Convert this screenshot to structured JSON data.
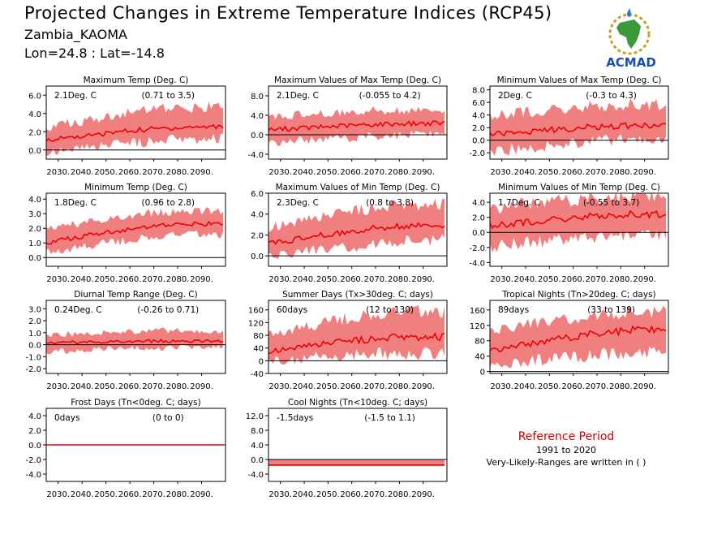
{
  "header": {
    "title": "Projected Changes in Extreme Temperature Indices (RCP45)",
    "location": "Zambia_KAOMA",
    "coords": "Lon=24.8 : Lat=-14.8"
  },
  "logo": {
    "text": "ACMAD",
    "icon": "africa-map-logo"
  },
  "reference": {
    "title": "Reference Period",
    "years": "1991 to 2020",
    "note": "Very-Likely-Ranges are written in ( )"
  },
  "colors": {
    "band": "#f08080",
    "line": "#ee0000",
    "zero": "#000000",
    "ref_title": "#cc0000"
  },
  "chart_data": [
    {
      "type": "area",
      "title": "Maximum Temp (Deg. C)",
      "value": "2.1Deg. C",
      "range": "(0.71 to 3.5)",
      "x_ticks": [
        "2030.",
        "2040.",
        "2050.",
        "2060.",
        "2070.",
        "2080.",
        "2090."
      ],
      "y_ticks": [
        "0.0",
        "2.0",
        "4.0",
        "6.0"
      ],
      "ylim": [
        -1.0,
        7.0
      ],
      "xlim": [
        2025,
        2100
      ],
      "x": [
        2025,
        2035,
        2045,
        2055,
        2065,
        2075,
        2085,
        2099
      ],
      "median": [
        1.1,
        1.4,
        1.6,
        2.0,
        2.2,
        2.4,
        2.5,
        2.6
      ],
      "low": [
        -0.2,
        0.1,
        0.3,
        0.6,
        0.8,
        1.1,
        1.2,
        1.3
      ],
      "high": [
        2.4,
        3.0,
        3.3,
        3.8,
        4.2,
        4.5,
        4.6,
        4.8
      ]
    },
    {
      "type": "area",
      "title": "Maximum Values of Max Temp (Deg. C)",
      "value": "2.1Deg. C",
      "range": "(-0.055 to 4.2)",
      "x_ticks": [
        "2030.",
        "2040.",
        "2050.",
        "2060.",
        "2070.",
        "2080.",
        "2090."
      ],
      "y_ticks": [
        "-4.0",
        "0.0",
        "4.0",
        "8.0"
      ],
      "ylim": [
        -5.0,
        10.0
      ],
      "xlim": [
        2025,
        2100
      ],
      "x": [
        2025,
        2035,
        2045,
        2055,
        2065,
        2075,
        2085,
        2099
      ],
      "median": [
        1.0,
        1.3,
        1.5,
        1.8,
        2.0,
        2.2,
        2.3,
        2.4
      ],
      "low": [
        -1.6,
        -1.4,
        -1.0,
        -0.8,
        -0.4,
        -0.2,
        0.0,
        0.2
      ],
      "high": [
        3.5,
        4.0,
        4.2,
        4.6,
        4.9,
        5.0,
        5.1,
        5.0
      ]
    },
    {
      "type": "area",
      "title": "Minimum Values of Max Temp (Deg. C)",
      "value": "2Deg. C",
      "range": "(-0.3 to 4.3)",
      "x_ticks": [
        "2030.",
        "2040.",
        "2050.",
        "2060.",
        "2070.",
        "2080.",
        "2090."
      ],
      "y_ticks": [
        "-2.0",
        "0.0",
        "2.0",
        "4.0",
        "6.0",
        "8.0"
      ],
      "ylim": [
        -3.0,
        8.6
      ],
      "xlim": [
        2025,
        2100
      ],
      "x": [
        2025,
        2035,
        2045,
        2055,
        2065,
        2075,
        2085,
        2099
      ],
      "median": [
        1.0,
        1.2,
        1.5,
        1.8,
        2.0,
        2.2,
        2.3,
        2.3
      ],
      "low": [
        -1.8,
        -1.4,
        -1.0,
        -0.6,
        -0.3,
        0.0,
        0.1,
        0.2
      ],
      "high": [
        3.6,
        4.2,
        4.6,
        5.0,
        5.3,
        5.5,
        5.7,
        5.6
      ]
    },
    {
      "type": "area",
      "title": "Minimum Temp (Deg. C)",
      "value": "1.8Deg. C",
      "range": "(0.96 to 2.8)",
      "x_ticks": [
        "2030.",
        "2040.",
        "2050.",
        "2060.",
        "2070.",
        "2080.",
        "2090."
      ],
      "y_ticks": [
        "0.0",
        "1.0",
        "2.0",
        "3.0",
        "4.0"
      ],
      "ylim": [
        -0.6,
        4.4
      ],
      "xlim": [
        2025,
        2100
      ],
      "x": [
        2025,
        2035,
        2045,
        2055,
        2065,
        2075,
        2085,
        2099
      ],
      "median": [
        1.0,
        1.3,
        1.6,
        1.8,
        2.0,
        2.2,
        2.3,
        2.3
      ],
      "low": [
        0.3,
        0.6,
        0.9,
        1.1,
        1.3,
        1.5,
        1.6,
        1.6
      ],
      "high": [
        1.9,
        2.2,
        2.5,
        2.8,
        3.0,
        3.1,
        3.2,
        3.2
      ]
    },
    {
      "type": "area",
      "title": "Maximum Values of Min Temp (Deg. C)",
      "value": "2.3Deg. C",
      "range": "(0.8 to 3.8)",
      "x_ticks": [
        "2030.",
        "2040.",
        "2050.",
        "2060.",
        "2070.",
        "2080.",
        "2090."
      ],
      "y_ticks": [
        "0.0",
        "2.0",
        "4.0",
        "6.0"
      ],
      "ylim": [
        -1.0,
        6.0
      ],
      "xlim": [
        2025,
        2100
      ],
      "x": [
        2025,
        2035,
        2045,
        2055,
        2065,
        2075,
        2085,
        2099
      ],
      "median": [
        1.2,
        1.5,
        1.9,
        2.2,
        2.5,
        2.8,
        2.9,
        2.9
      ],
      "low": [
        -0.2,
        0.2,
        0.5,
        0.8,
        1.0,
        1.3,
        1.5,
        1.5
      ],
      "high": [
        2.8,
        3.2,
        3.6,
        4.0,
        4.4,
        4.7,
        4.9,
        5.0
      ]
    },
    {
      "type": "area",
      "title": "Minimum Values of Min Temp (Deg. C)",
      "value": "1.7Deg. C",
      "range": "(-0.55 to 3.7)",
      "x_ticks": [
        "2030.",
        "2040.",
        "2050.",
        "2060.",
        "2070.",
        "2080.",
        "2090."
      ],
      "y_ticks": [
        "-4.0",
        "-2.0",
        "0.0",
        "2.0",
        "4.0"
      ],
      "ylim": [
        -4.5,
        5.2
      ],
      "xlim": [
        2025,
        2100
      ],
      "x": [
        2025,
        2035,
        2045,
        2055,
        2065,
        2075,
        2085,
        2099
      ],
      "median": [
        0.8,
        1.1,
        1.5,
        1.8,
        2.1,
        2.3,
        2.4,
        2.4
      ],
      "low": [
        -1.8,
        -1.6,
        -1.3,
        -1.0,
        -0.8,
        -0.6,
        -0.5,
        -0.4
      ],
      "high": [
        3.2,
        3.6,
        3.9,
        4.2,
        4.4,
        4.6,
        4.7,
        4.7
      ]
    },
    {
      "type": "area",
      "title": "Diurnal Temp Range (Deg. C)",
      "value": "0.24Deg. C",
      "range": "(-0.26 to 0.71)",
      "x_ticks": [
        "2030.",
        "2040.",
        "2050.",
        "2060.",
        "2070.",
        "2080.",
        "2090."
      ],
      "y_ticks": [
        "-2.0",
        "-1.0",
        "0.0",
        "1.0",
        "2.0",
        "3.0"
      ],
      "ylim": [
        -2.4,
        3.7
      ],
      "xlim": [
        2025,
        2100
      ],
      "x": [
        2025,
        2035,
        2045,
        2055,
        2065,
        2075,
        2085,
        2099
      ],
      "median": [
        0.1,
        0.2,
        0.2,
        0.3,
        0.3,
        0.3,
        0.3,
        0.3
      ],
      "low": [
        -0.6,
        -0.5,
        -0.4,
        -0.3,
        -0.3,
        -0.3,
        -0.2,
        -0.2
      ],
      "high": [
        0.8,
        0.9,
        1.0,
        1.1,
        1.1,
        1.2,
        1.1,
        1.1
      ]
    },
    {
      "type": "area",
      "title": "Summer Days (Tx>30deg. C; days)",
      "value": "60days",
      "range": "(12 to 130)",
      "x_ticks": [
        "2030.",
        "2040.",
        "2050.",
        "2060.",
        "2070.",
        "2080.",
        "2090."
      ],
      "y_ticks": [
        "-40",
        "0",
        "40",
        "80",
        "120",
        "160"
      ],
      "ylim": [
        -40,
        190
      ],
      "xlim": [
        2025,
        2100
      ],
      "x": [
        2025,
        2035,
        2045,
        2055,
        2065,
        2075,
        2085,
        2099
      ],
      "median": [
        30,
        40,
        50,
        58,
        65,
        72,
        75,
        76
      ],
      "low": [
        0,
        5,
        10,
        15,
        20,
        22,
        25,
        25
      ],
      "high": [
        80,
        100,
        115,
        130,
        140,
        150,
        155,
        158
      ]
    },
    {
      "type": "area",
      "title": "Tropical Nights (Tn>20deg. C; days)",
      "value": "89days",
      "range": "(33 to 139)",
      "x_ticks": [
        "2030.",
        "2040.",
        "2050.",
        "2060.",
        "2070.",
        "2080.",
        "2090."
      ],
      "y_ticks": [
        "0",
        "40",
        "80",
        "120",
        "160"
      ],
      "ylim": [
        -5,
        185
      ],
      "xlim": [
        2025,
        2100
      ],
      "x": [
        2025,
        2035,
        2045,
        2055,
        2065,
        2075,
        2085,
        2099
      ],
      "median": [
        55,
        65,
        75,
        85,
        95,
        103,
        108,
        108
      ],
      "low": [
        15,
        25,
        30,
        35,
        40,
        45,
        48,
        50
      ],
      "high": [
        100,
        115,
        125,
        135,
        145,
        150,
        155,
        155
      ]
    },
    {
      "type": "area",
      "title": "Frost Days (Tn<0deg. C; days)",
      "value": "0days",
      "range": "(0 to 0)",
      "x_ticks": [
        "2030.",
        "2040.",
        "2050.",
        "2060.",
        "2070.",
        "2080.",
        "2090."
      ],
      "y_ticks": [
        "-4.0",
        "-2.0",
        "0.0",
        "2.0",
        "4.0"
      ],
      "ylim": [
        -5.0,
        5.0
      ],
      "xlim": [
        2025,
        2100
      ],
      "x": [
        2025,
        2099
      ],
      "median": [
        0,
        0
      ],
      "low": [
        0,
        0
      ],
      "high": [
        0,
        0
      ]
    },
    {
      "type": "area",
      "title": "Cool Nights (Tn<10deg. C; days)",
      "value": "-1.5days",
      "range": "(-1.5 to 1.1)",
      "x_ticks": [
        "2030.",
        "2040.",
        "2050.",
        "2060.",
        "2070.",
        "2080.",
        "2090."
      ],
      "y_ticks": [
        "-4.0",
        "0.0",
        "4.0",
        "8.0",
        "12.0"
      ],
      "ylim": [
        -6.0,
        14.0
      ],
      "xlim": [
        2025,
        2100
      ],
      "x": [
        2025,
        2099
      ],
      "median": [
        -1.5,
        -1.5
      ],
      "low": [
        -1.8,
        -1.8
      ],
      "high": [
        0.0,
        0.0
      ]
    }
  ]
}
